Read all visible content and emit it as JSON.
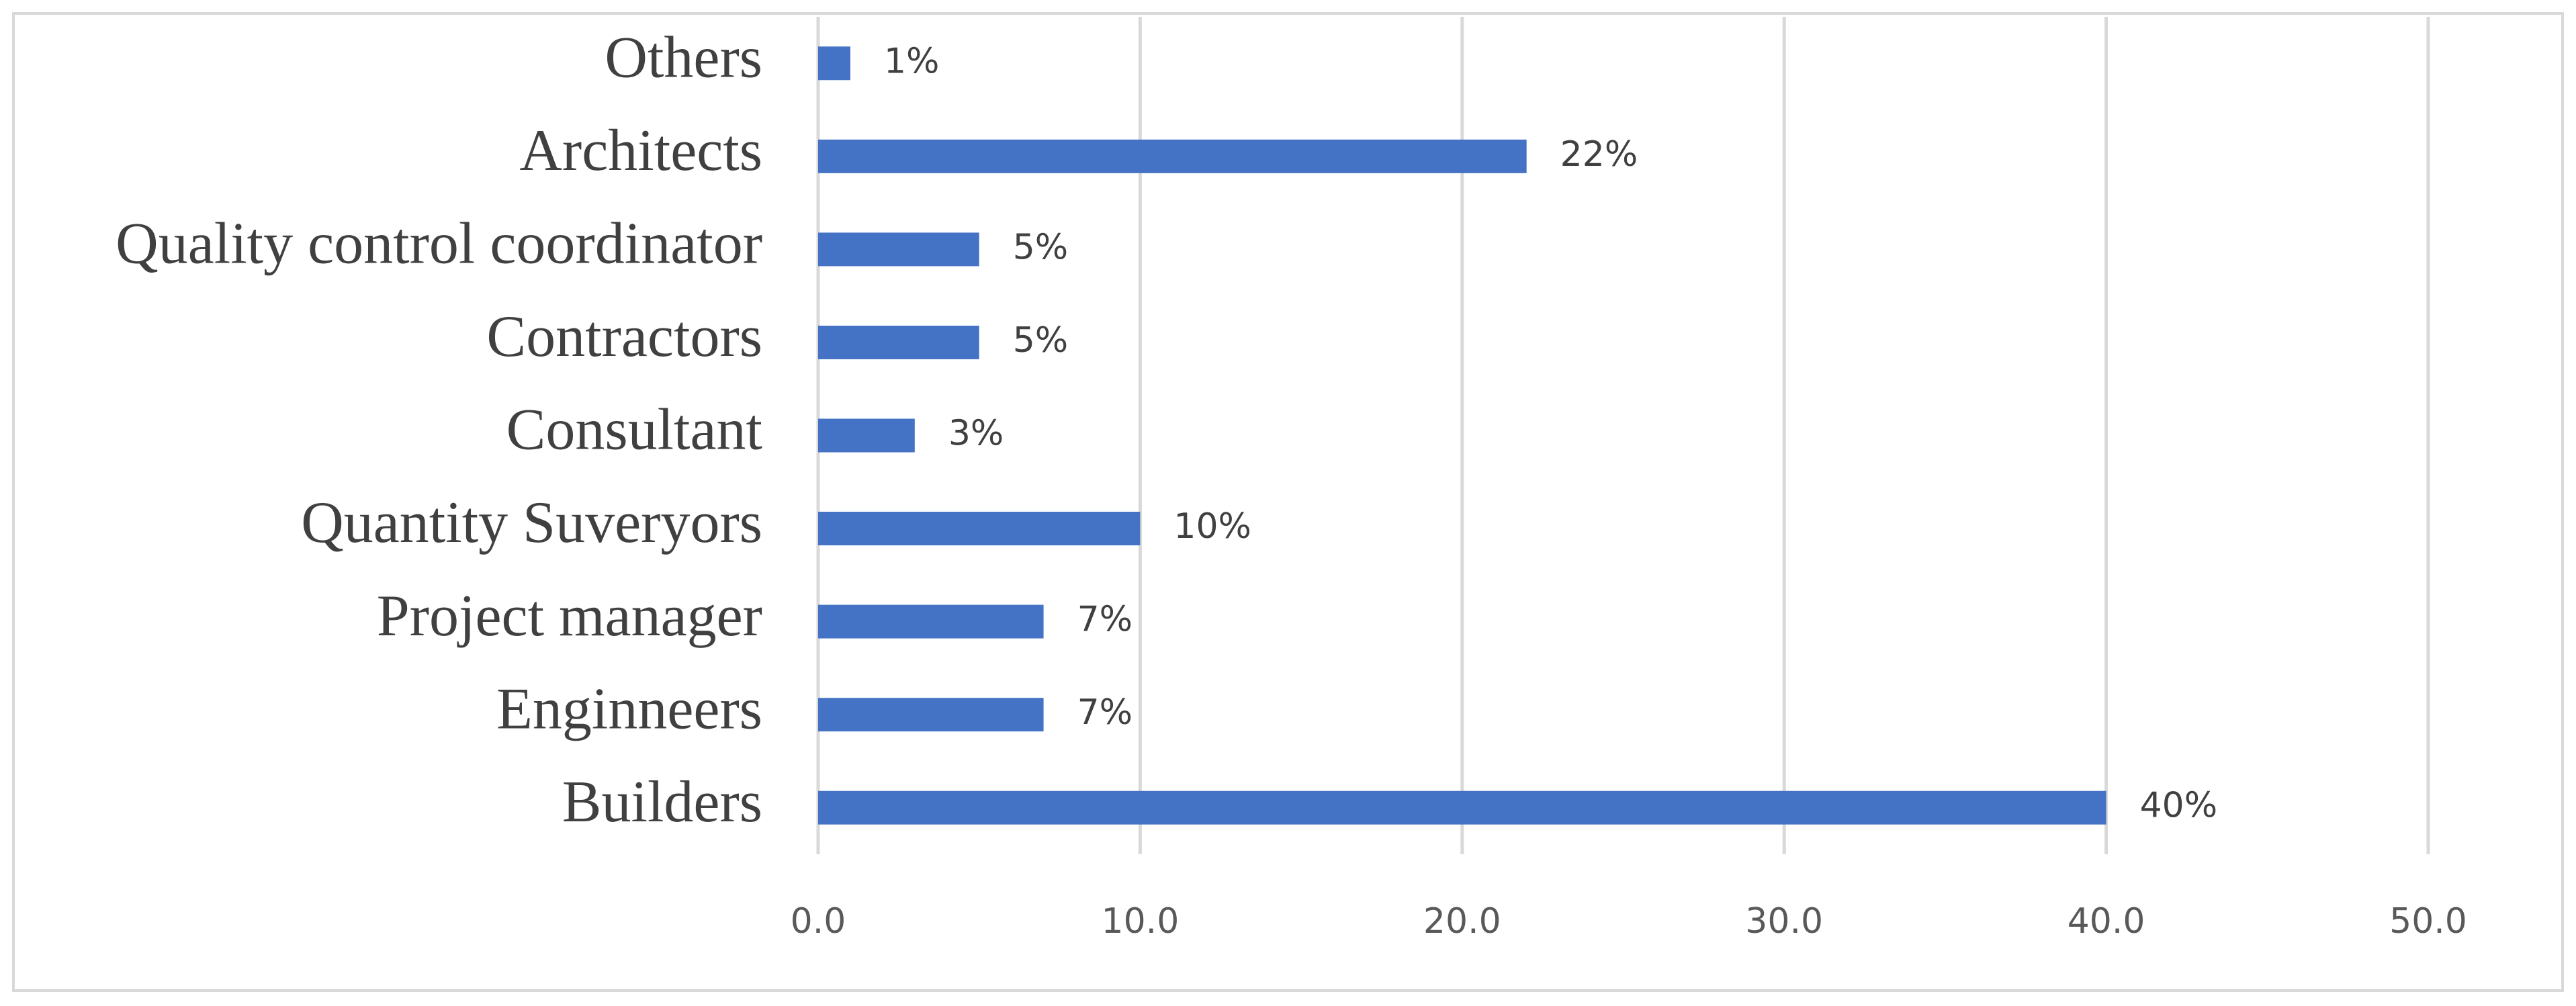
{
  "chart_data": {
    "type": "bar",
    "orientation": "horizontal",
    "categories": [
      "Builders",
      "Enginneers",
      "Project manager",
      "Quantity Suveryors",
      "Consultant",
      "Contractors",
      "Quality control coordinator",
      "Architects",
      "Others"
    ],
    "values": [
      40,
      7,
      7,
      10,
      3,
      5,
      5,
      22,
      1
    ],
    "value_labels": [
      "40%",
      "7%",
      "7%",
      "10%",
      "3%",
      "5%",
      "5%",
      "22%",
      "1%"
    ],
    "color": "#4472c4",
    "xlim": [
      0,
      50
    ],
    "xticks": [
      {
        "value": 0,
        "label": "0.0"
      },
      {
        "value": 10,
        "label": "10.0"
      },
      {
        "value": 20,
        "label": "20.0"
      },
      {
        "value": 30,
        "label": "30.0"
      },
      {
        "value": 40,
        "label": "40.0"
      },
      {
        "value": 50,
        "label": "50.0"
      }
    ],
    "grid": true
  }
}
